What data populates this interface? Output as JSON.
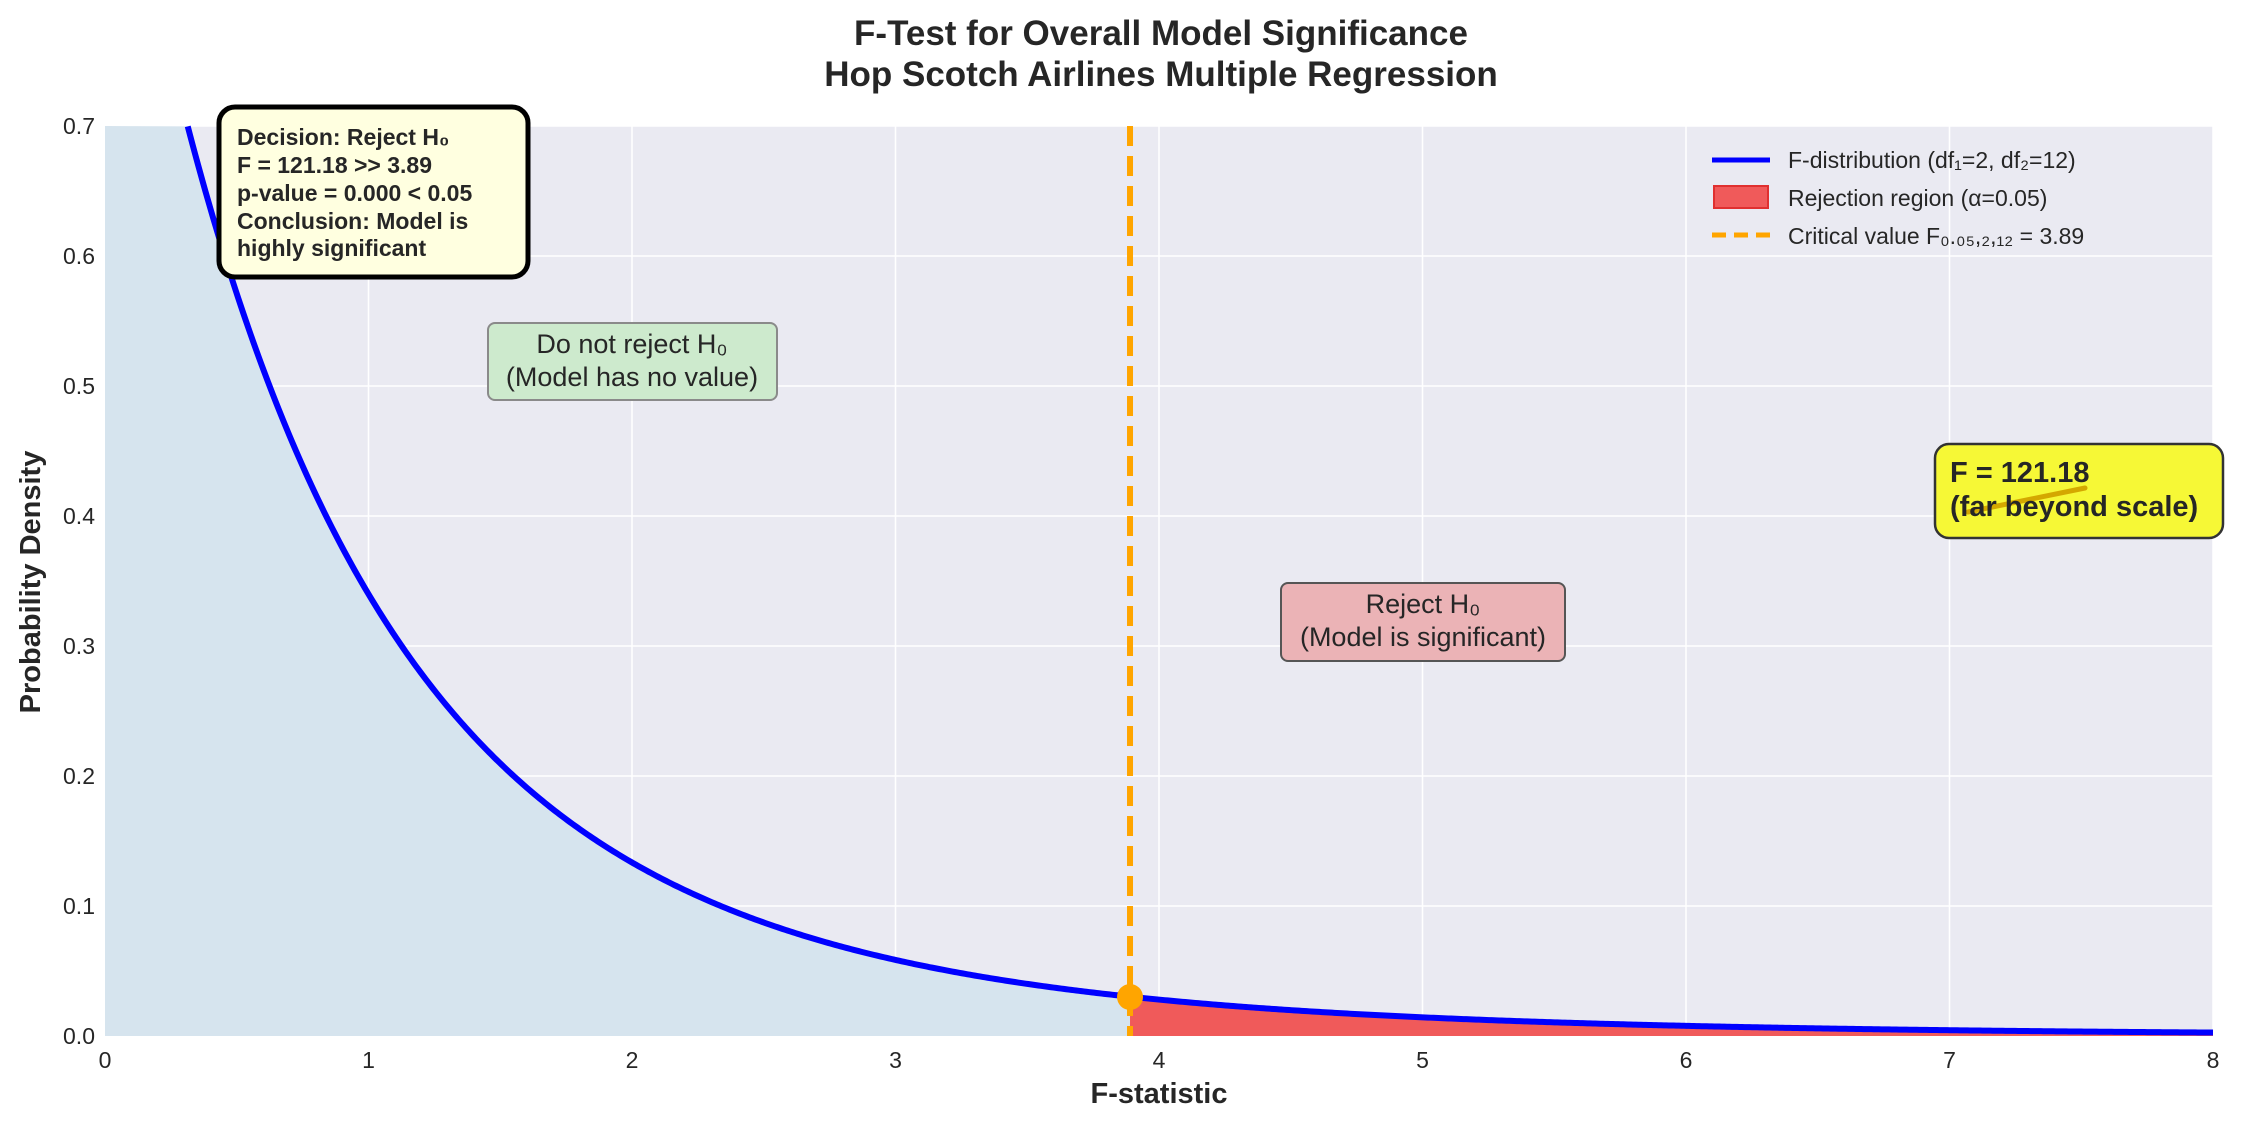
{
  "chart_data": {
    "type": "line",
    "title": [
      "F-Test for Overall Model Significance",
      "Hop Scotch Airlines Multiple Regression"
    ],
    "xlabel": "F-statistic",
    "ylabel": "Probability Density",
    "xlim": [
      0,
      8
    ],
    "ylim": [
      0,
      0.7
    ],
    "xticks": [
      "0",
      "1",
      "2",
      "3",
      "4",
      "5",
      "6",
      "7",
      "8"
    ],
    "yticks": [
      "0.0",
      "0.1",
      "0.2",
      "0.3",
      "0.4",
      "0.5",
      "0.6",
      "0.7"
    ],
    "grid": true,
    "df1": 2,
    "df2": 12,
    "alpha": 0.05,
    "critical_value": 3.89,
    "critical_density": 0.03,
    "series": [
      {
        "name": "F-distribution (df₁=2, df₂=12)",
        "color": "#0000ff",
        "style": "solid"
      },
      {
        "name": "Rejection region (α=0.05)",
        "color": "#f05a5a",
        "style": "fill"
      },
      {
        "name": "Critical value F₀.₀₅,₂,₁₂ = 3.89",
        "color": "#ffa500",
        "style": "dashed"
      }
    ],
    "legend_position": "top-right",
    "annotations": {
      "decision_box": [
        "Decision: Reject H₀",
        "F = 121.18 >> 3.89",
        "p-value = 0.000 < 0.05",
        "Conclusion: Model is",
        "highly significant"
      ],
      "do_not_reject": [
        "Do not reject H₀",
        "(Model has no value)"
      ],
      "reject": [
        "Reject H₀",
        "(Model is significant)"
      ],
      "f_value": [
        "F = 121.18",
        "(far beyond scale)"
      ]
    },
    "colors": {
      "plot_background": "#eaeaf2",
      "acceptance_fill": "#d6e4ee",
      "curve": "#0000ff",
      "rejection_fill": "#f05a5a",
      "critical_line": "#ffa500",
      "decision_box_bg": "#ffffe0",
      "do_not_reject_bg": "#cdeacd",
      "reject_bg": "#ebb3b6",
      "f_value_bg": "#f6f836"
    }
  }
}
